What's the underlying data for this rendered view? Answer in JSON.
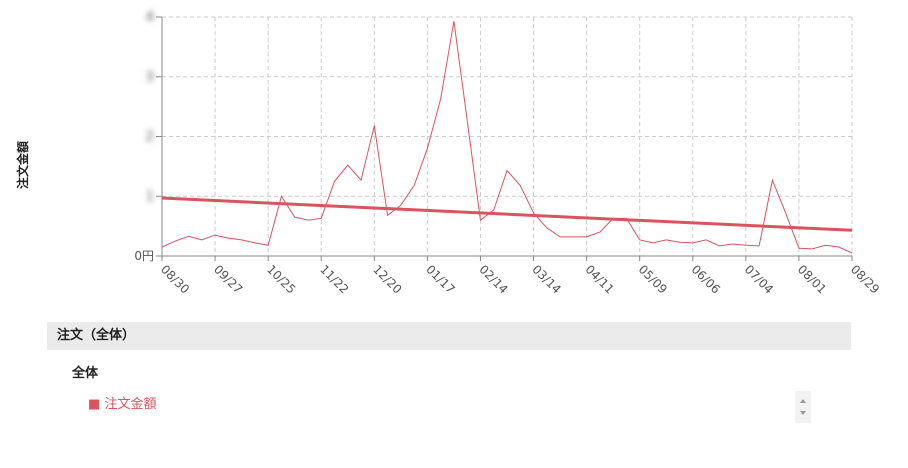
{
  "chart_data": {
    "type": "line",
    "y_label": "注文金額",
    "categories": [
      "08/30",
      null,
      null,
      null,
      "09/27",
      null,
      null,
      null,
      "10/25",
      null,
      null,
      null,
      "11/22",
      null,
      null,
      null,
      "12/20",
      null,
      null,
      null,
      "01/17",
      null,
      null,
      null,
      "02/14",
      null,
      null,
      null,
      "03/14",
      null,
      null,
      null,
      "04/11",
      null,
      null,
      null,
      "05/09",
      null,
      null,
      null,
      "06/06",
      null,
      null,
      null,
      "07/04",
      null,
      null,
      null,
      "08/01",
      null,
      null,
      null,
      "08/29"
    ],
    "series": [
      {
        "name": "注文金額",
        "color": "#d9545f",
        "values": [
          0.15,
          0.25,
          0.33,
          0.27,
          0.35,
          0.3,
          0.27,
          0.22,
          0.18,
          1.0,
          0.65,
          0.6,
          0.63,
          1.25,
          1.52,
          1.27,
          2.18,
          0.68,
          0.85,
          1.18,
          1.8,
          2.63,
          3.93,
          2.27,
          0.6,
          0.77,
          1.43,
          1.18,
          0.72,
          0.47,
          0.32,
          0.32,
          0.32,
          0.4,
          0.63,
          0.63,
          0.27,
          0.22,
          0.27,
          0.23,
          0.22,
          0.27,
          0.17,
          0.2,
          0.18,
          0.17,
          1.27,
          0.72,
          0.13,
          0.12,
          0.18,
          0.15,
          0.05
        ]
      }
    ],
    "trend": {
      "color": "#d9545f",
      "values": [
        0.97,
        0.43
      ]
    },
    "ylim": [
      0,
      4
    ],
    "yticks": [
      {
        "value": 0,
        "label": "0円"
      },
      1,
      2,
      3,
      4
    ],
    "grid": true
  },
  "panel": {
    "title": "注文（全体）",
    "group": "全体"
  }
}
